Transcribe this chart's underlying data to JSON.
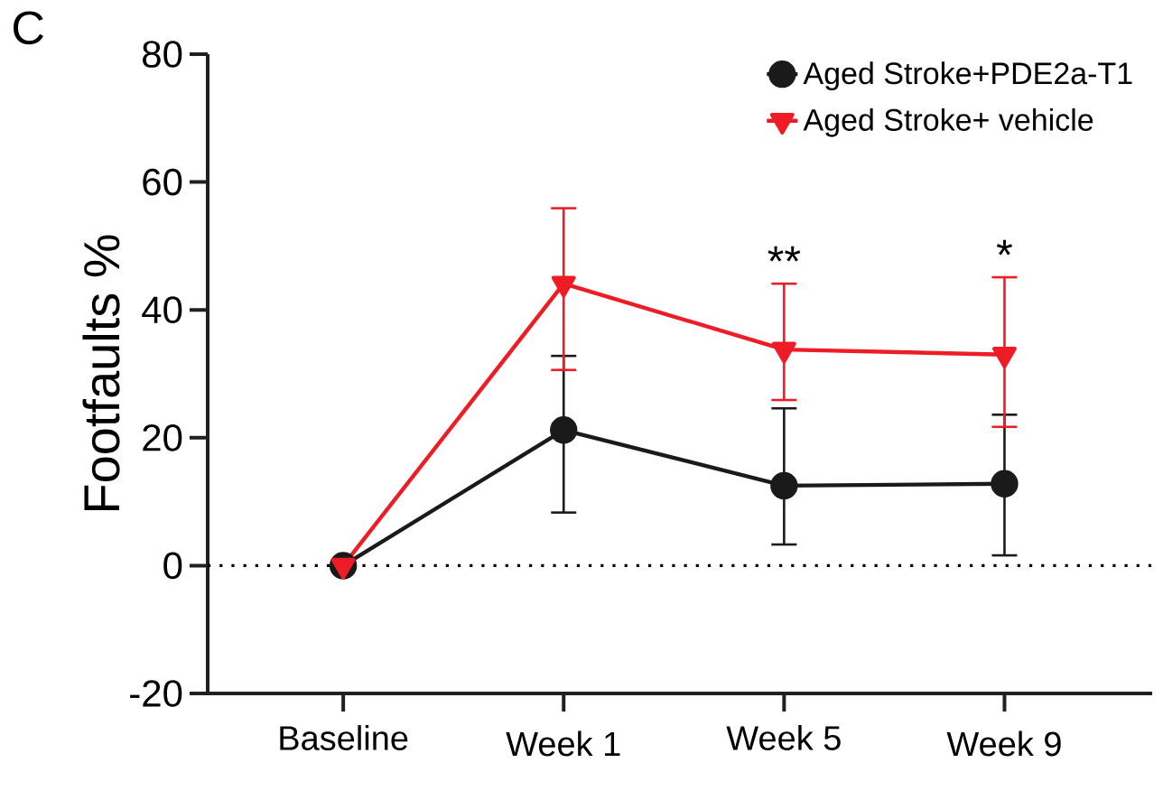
{
  "chart_data": {
    "type": "line",
    "ylabel": "Footfaults %",
    "categories": [
      "Baseline",
      "Week 1",
      "Week  5",
      "Week 9"
    ],
    "ylim": [
      -20,
      80
    ],
    "yticks": [
      -20,
      0,
      20,
      40,
      60,
      80
    ],
    "legend": "top right",
    "grid": false,
    "series": [
      {
        "name": "Aged Stroke+PDE2a-T1",
        "color": "#1a1a1a",
        "marker": "circle",
        "values": [
          0,
          21.2,
          12.5,
          12.8
        ],
        "errors": [
          null,
          [
            8.3,
            32.8
          ],
          [
            3.3,
            24.6
          ],
          [
            1.6,
            23.6
          ]
        ]
      },
      {
        "name": "Aged Stroke+ vehicle",
        "color": "#ee1c25",
        "marker": "triangle",
        "values": [
          0,
          44.1,
          33.8,
          33.0
        ],
        "errors": [
          null,
          [
            30.6,
            55.9
          ],
          [
            25.9,
            44.1
          ],
          [
            21.7,
            45.1
          ]
        ]
      }
    ],
    "ref_lines": [
      {
        "axis": "y",
        "value": 0,
        "line_style": "dotted",
        "color": "#000000"
      }
    ],
    "annotations": [
      "C",
      "**",
      "*"
    ]
  }
}
